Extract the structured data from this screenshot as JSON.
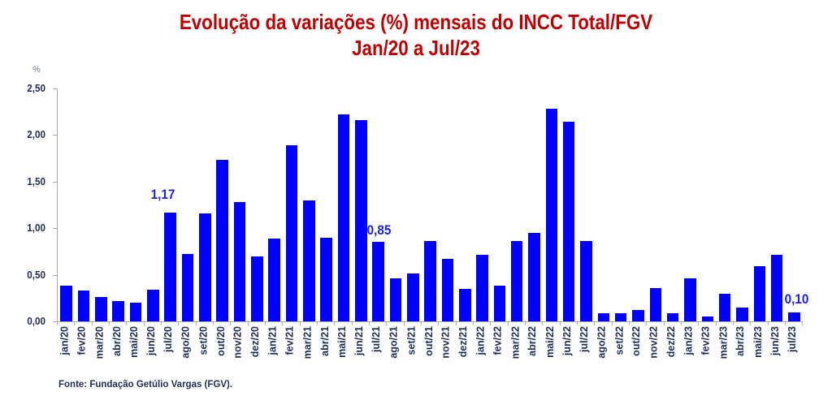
{
  "chart_data": {
    "type": "bar",
    "title": "Evolução da variações (%) mensais do INCC Total/FGV",
    "subtitle": "Jan/20 a Jul/23",
    "xlabel": "",
    "ylabel": "%",
    "ylim": [
      0,
      2.5
    ],
    "yticks": [
      "0,00",
      "0,50",
      "1,00",
      "1,50",
      "2,00",
      "2,50"
    ],
    "grid": false,
    "legend": null,
    "categories": [
      "jan/20",
      "fev/20",
      "mar/20",
      "abr/20",
      "mai/20",
      "jun/20",
      "jul/20",
      "ago/20",
      "set/20",
      "out/20",
      "nov/20",
      "dez/20",
      "jan/21",
      "fev/21",
      "mar/21",
      "abr/21",
      "mai/21",
      "jun/21",
      "jul/21",
      "ago/21",
      "set/21",
      "out/21",
      "nov/21",
      "dez/21",
      "jan/22",
      "fev/22",
      "mar/22",
      "abr/22",
      "mai/22",
      "jun/22",
      "jul/22",
      "ago/22",
      "set/22",
      "out/22",
      "nov/22",
      "dez/22",
      "jan/23",
      "fev/23",
      "mar/23",
      "abr/23",
      "mai/23",
      "jun/23",
      "jul/23"
    ],
    "values": [
      0.38,
      0.33,
      0.26,
      0.22,
      0.2,
      0.34,
      1.17,
      0.72,
      1.16,
      1.73,
      1.28,
      0.7,
      0.89,
      1.89,
      1.3,
      0.9,
      2.22,
      2.16,
      0.85,
      0.46,
      0.51,
      0.86,
      0.67,
      0.35,
      0.71,
      0.38,
      0.86,
      0.95,
      2.28,
      2.14,
      0.86,
      0.09,
      0.09,
      0.12,
      0.36,
      0.09,
      0.46,
      0.05,
      0.3,
      0.15,
      0.59,
      0.71,
      0.1
    ],
    "annotations": [
      {
        "category": "jul/20",
        "label": "1,17"
      },
      {
        "category": "jul/21",
        "label": "0,85"
      },
      {
        "category": "jul/23",
        "label": "0,10"
      }
    ],
    "bar_color": "#0000ff",
    "title_color": "#c00000"
  },
  "source": "Fonte: Fundação Getúlio Vargas (FGV)."
}
